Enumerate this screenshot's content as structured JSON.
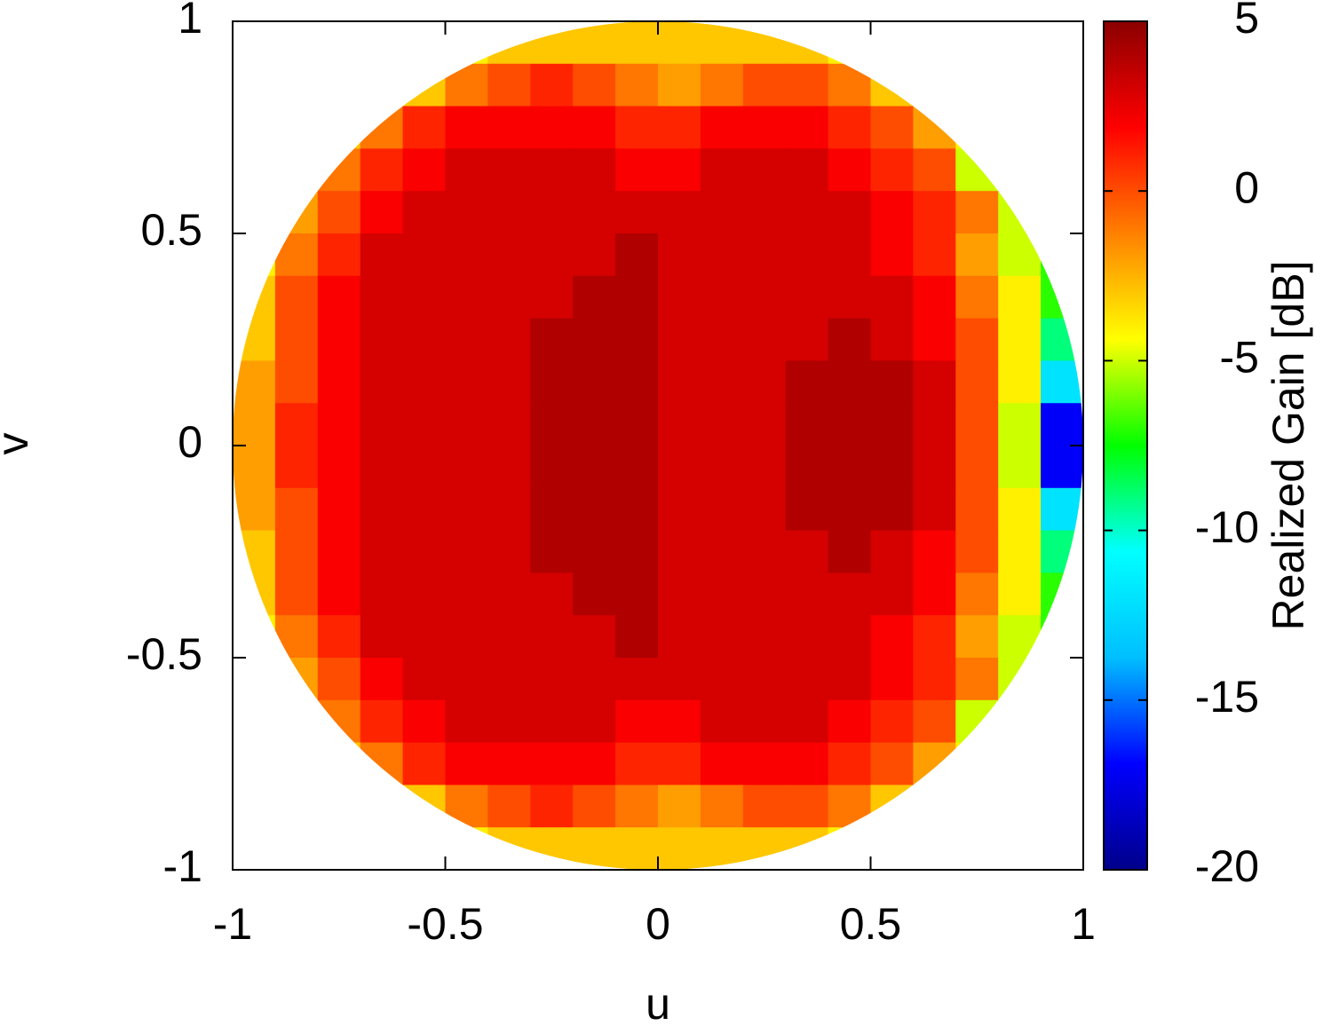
{
  "chart_data": {
    "type": "heatmap",
    "xlabel": "u",
    "ylabel": "v",
    "colorbar_label": "Realized Gain [dB]",
    "xlim": [
      -1,
      1
    ],
    "ylim": [
      -1,
      1
    ],
    "xticks": [
      -1,
      -0.5,
      0,
      0.5,
      1
    ],
    "yticks": [
      -1,
      -0.5,
      0,
      0.5,
      1
    ],
    "zlim": [
      -20,
      5
    ],
    "zticks": [
      -20,
      -15,
      -10,
      -5,
      0,
      5
    ],
    "palette": [
      "#00008b",
      "#0000ff",
      "#00bfff",
      "#00ffff",
      "#00ff00",
      "#ffff00",
      "#ff8000",
      "#ff0000",
      "#8b0000"
    ],
    "x": [
      -0.95,
      -0.85,
      -0.75,
      -0.65,
      -0.55,
      -0.45,
      -0.35,
      -0.25,
      -0.15,
      -0.05,
      0.05,
      0.15,
      0.25,
      0.35,
      0.45,
      0.55,
      0.65,
      0.75,
      0.85,
      0.95
    ],
    "y": [
      0.95,
      0.85,
      0.75,
      0.65,
      0.55,
      0.45,
      0.35,
      0.25,
      0.15,
      0.05,
      -0.05,
      -0.15,
      -0.25,
      -0.35,
      -0.45,
      -0.55,
      -0.65,
      -0.75,
      -0.85,
      -0.95
    ],
    "z": [
      [
        null,
        null,
        null,
        null,
        null,
        -4,
        -3,
        -3,
        -3,
        -3,
        -3,
        -3,
        -3,
        -3,
        -4,
        null,
        null,
        null,
        null,
        null
      ],
      [
        null,
        null,
        null,
        null,
        -3,
        -1,
        0,
        1,
        0,
        -1,
        -2,
        -1,
        0,
        0,
        -1,
        -3,
        null,
        null,
        null,
        null
      ],
      [
        null,
        null,
        -3,
        -1,
        1,
        2,
        2,
        2,
        2,
        1,
        1,
        2,
        2,
        2,
        1,
        0,
        -2,
        -4,
        null,
        null
      ],
      [
        null,
        null,
        -1,
        1,
        2,
        3,
        3,
        3,
        3,
        2,
        2,
        3,
        3,
        3,
        2,
        1,
        0,
        -5,
        null,
        null
      ],
      [
        null,
        -2,
        0,
        2,
        3,
        3,
        3,
        3,
        3,
        3,
        3,
        3,
        3,
        3,
        3,
        2,
        1,
        -1,
        -5,
        null
      ],
      [
        -4,
        -1,
        1,
        3,
        3,
        3,
        3,
        3,
        3,
        4,
        3,
        3,
        3,
        3,
        3,
        2,
        1,
        -2,
        -5,
        -7
      ],
      [
        -3,
        0,
        2,
        3,
        3,
        3,
        3,
        3,
        4,
        4,
        3,
        3,
        3,
        3,
        3,
        3,
        2,
        -1,
        -4,
        -7
      ],
      [
        -3,
        0,
        2,
        3,
        3,
        3,
        3,
        4,
        4,
        4,
        3,
        3,
        3,
        3,
        4,
        3,
        2,
        0,
        -4,
        -9
      ],
      [
        -2,
        0,
        2,
        3,
        3,
        3,
        3,
        4,
        4,
        4,
        3,
        3,
        3,
        4,
        4,
        4,
        3,
        0,
        -4,
        -12
      ],
      [
        -2,
        1,
        2,
        3,
        3,
        3,
        3,
        4,
        4,
        4,
        3,
        3,
        3,
        4,
        4,
        4,
        3,
        0,
        -5,
        -17
      ],
      [
        -2,
        1,
        2,
        3,
        3,
        3,
        3,
        4,
        4,
        4,
        3,
        3,
        3,
        4,
        4,
        4,
        3,
        0,
        -5,
        -17
      ],
      [
        -2,
        0,
        2,
        3,
        3,
        3,
        3,
        4,
        4,
        4,
        3,
        3,
        3,
        4,
        4,
        4,
        3,
        0,
        -4,
        -12
      ],
      [
        -3,
        0,
        2,
        3,
        3,
        3,
        3,
        4,
        4,
        4,
        3,
        3,
        3,
        3,
        4,
        3,
        2,
        0,
        -4,
        -9
      ],
      [
        -3,
        0,
        2,
        3,
        3,
        3,
        3,
        3,
        4,
        4,
        3,
        3,
        3,
        3,
        3,
        3,
        2,
        -1,
        -4,
        -7
      ],
      [
        -4,
        -1,
        1,
        3,
        3,
        3,
        3,
        3,
        3,
        4,
        3,
        3,
        3,
        3,
        3,
        2,
        1,
        -2,
        -5,
        -7
      ],
      [
        null,
        -2,
        0,
        2,
        3,
        3,
        3,
        3,
        3,
        3,
        3,
        3,
        3,
        3,
        3,
        2,
        1,
        -1,
        -5,
        null
      ],
      [
        null,
        null,
        -1,
        1,
        2,
        3,
        3,
        3,
        3,
        2,
        2,
        3,
        3,
        3,
        2,
        1,
        0,
        -5,
        null,
        null
      ],
      [
        null,
        null,
        -3,
        -1,
        1,
        2,
        2,
        2,
        2,
        1,
        1,
        2,
        2,
        2,
        1,
        0,
        -2,
        -4,
        null,
        null
      ],
      [
        null,
        null,
        null,
        null,
        -3,
        -1,
        0,
        1,
        0,
        -1,
        -2,
        -1,
        0,
        0,
        -1,
        -3,
        null,
        null,
        null,
        null
      ],
      [
        null,
        null,
        null,
        null,
        null,
        -4,
        -3,
        -3,
        -3,
        -3,
        -3,
        -3,
        -3,
        -3,
        -4,
        null,
        null,
        null,
        null,
        null
      ]
    ]
  }
}
